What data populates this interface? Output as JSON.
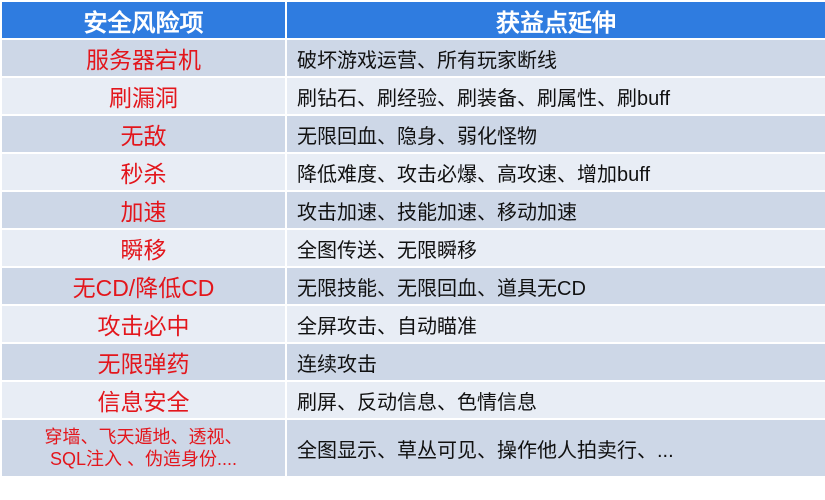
{
  "table": {
    "headers": [
      "安全风险项",
      "获益点延伸"
    ],
    "rows": [
      {
        "risk": "服务器宕机",
        "gain": "破坏游戏运营、所有玩家断线"
      },
      {
        "risk": "刷漏洞",
        "gain": "刷钻石、刷经验、刷装备、刷属性、刷buff"
      },
      {
        "risk": "无敌",
        "gain": "无限回血、隐身、弱化怪物"
      },
      {
        "risk": "秒杀",
        "gain": "降低难度、攻击必爆、高攻速、增加buff"
      },
      {
        "risk": "加速",
        "gain": "攻击加速、技能加速、移动加速"
      },
      {
        "risk": "瞬移",
        "gain": "全图传送、无限瞬移"
      },
      {
        "risk": "无CD/降低CD",
        "gain": "无限技能、无限回血、道具无CD"
      },
      {
        "risk": "攻击必中",
        "gain": "全屏攻击、自动瞄准"
      },
      {
        "risk": "无限弹药",
        "gain": "连续攻击"
      },
      {
        "risk": "信息安全",
        "gain": "刷屏、反动信息、色情信息"
      }
    ],
    "last_row": {
      "risk_line1": "穿墙、飞天遁地、透视、",
      "risk_line2": "SQL注入 、伪造身份....",
      "gain": "全图显示、草丛可见、操作他人拍卖行、..."
    }
  },
  "colors": {
    "header": "#2F7CE0",
    "risk_text": "#E3161C",
    "row_odd": "#CDD7E7",
    "row_even": "#E8EDF5"
  }
}
